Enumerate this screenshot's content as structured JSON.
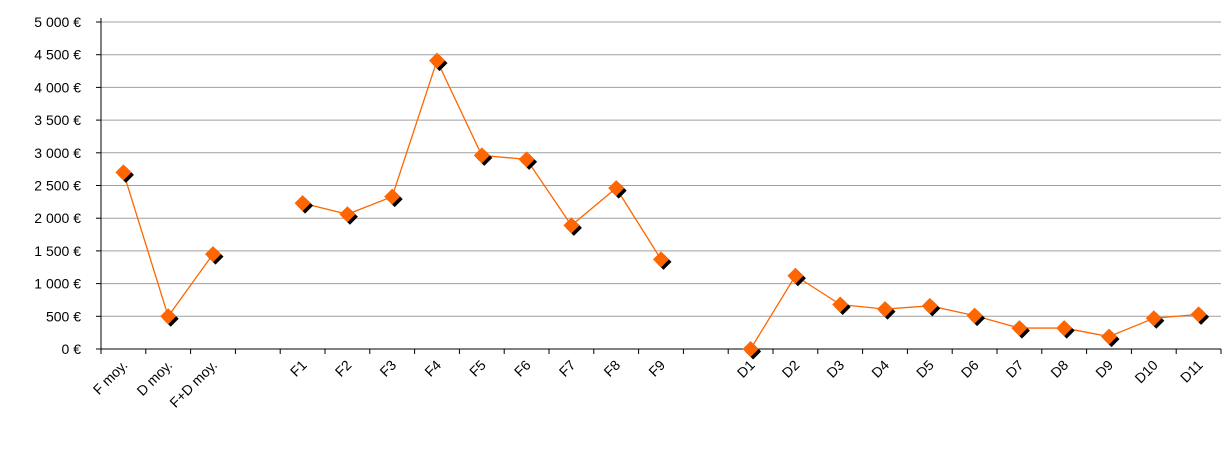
{
  "chart_data": {
    "type": "line",
    "title": "",
    "xlabel": "",
    "ylabel": "",
    "ylim": [
      0,
      5000
    ],
    "yticks": [
      0,
      500,
      1000,
      1500,
      2000,
      2500,
      3000,
      3500,
      4000,
      4500,
      5000
    ],
    "ytick_labels": [
      "0 €",
      "500 €",
      "1 000 €",
      "1 500 €",
      "2 000 €",
      "2 500 €",
      "3 000 €",
      "3 500 €",
      "4 000 €",
      "4 500 €",
      "5 000 €"
    ],
    "grid": true,
    "legend": "none",
    "colors": {
      "line": "#ff6600",
      "marker": "#ff6600",
      "marker_shadow": "#000000",
      "grid": "#a0a0a0"
    },
    "categories": [
      "F moy.",
      "D moy.",
      "F+D moy.",
      "",
      "F1",
      "F2",
      "F3",
      "F4",
      "F5",
      "F6",
      "F7",
      "F8",
      "F9",
      "",
      "D1",
      "D2",
      "D3",
      "D4",
      "D5",
      "D6",
      "D7",
      "D8",
      "D9",
      "D10",
      "D11"
    ],
    "values": [
      2700,
      500,
      1450,
      null,
      2230,
      2060,
      2330,
      4410,
      2960,
      2900,
      1890,
      2460,
      1370,
      null,
      0,
      1120,
      680,
      610,
      660,
      510,
      320,
      320,
      190,
      470,
      530
    ]
  }
}
